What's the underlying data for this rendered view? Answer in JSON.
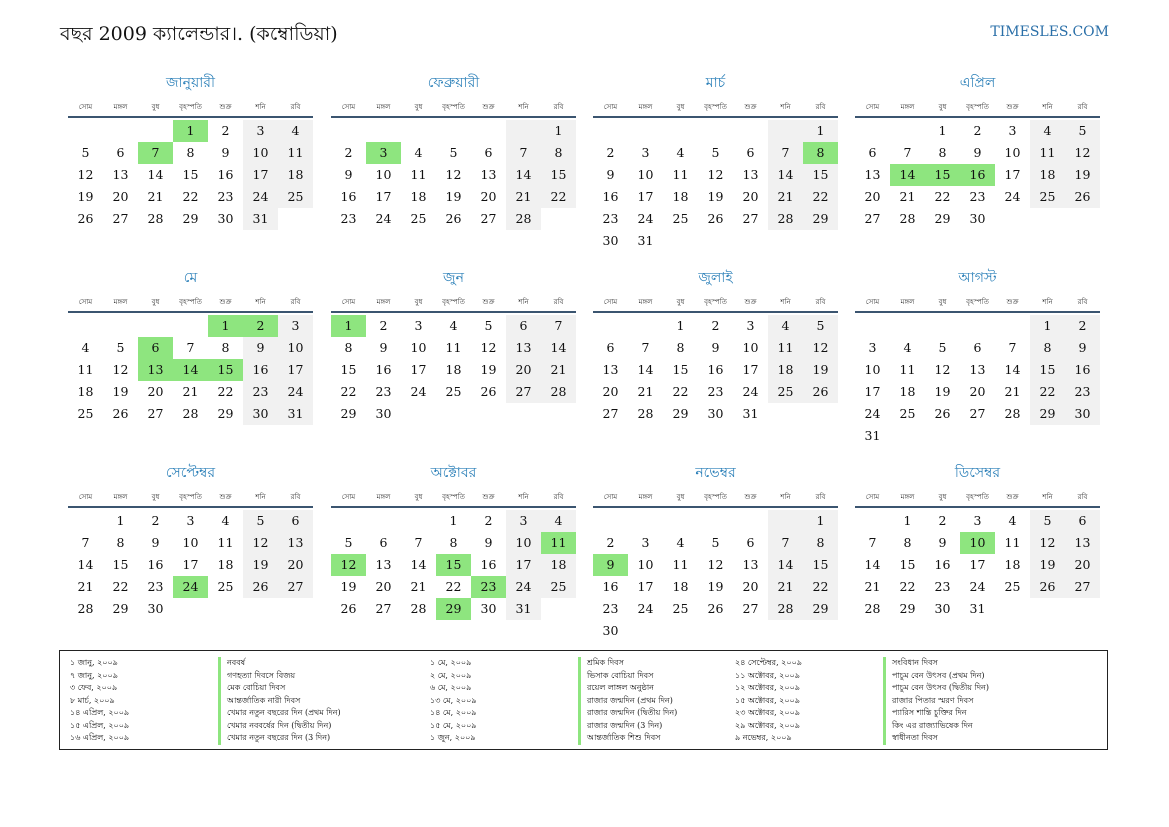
{
  "header": {
    "title": "বছর 2009 ক্যালেন্ডার।. (কম্বোডিয়া)",
    "site": "TIMESLES.COM"
  },
  "weekdays": [
    "সোম",
    "মঙ্গল",
    "বুধ",
    "বৃহস্পতি",
    "শুক্র",
    "শনি",
    "রবি"
  ],
  "colors": {
    "accent": "#2a7fb8",
    "holiday": "#8ee57f",
    "weekend": "#f1f1f1"
  },
  "months": [
    {
      "name": "জানুয়ারী",
      "offset": 3,
      "days": 31,
      "holidays": [
        1,
        7
      ]
    },
    {
      "name": "ফেব্রুয়ারী",
      "offset": 6,
      "days": 28,
      "holidays": [
        3
      ]
    },
    {
      "name": "মার্চ",
      "offset": 6,
      "days": 31,
      "holidays": [
        8
      ]
    },
    {
      "name": "এপ্রিল",
      "offset": 2,
      "days": 30,
      "holidays": [
        14,
        15,
        16
      ]
    },
    {
      "name": "মে",
      "offset": 4,
      "days": 31,
      "holidays": [
        1,
        2,
        6,
        13,
        14,
        15
      ]
    },
    {
      "name": "জুন",
      "offset": 0,
      "days": 30,
      "holidays": [
        1
      ]
    },
    {
      "name": "জুলাই",
      "offset": 2,
      "days": 31,
      "holidays": []
    },
    {
      "name": "আগস্ট",
      "offset": 5,
      "days": 31,
      "holidays": []
    },
    {
      "name": "সেপ্টেম্বর",
      "offset": 1,
      "days": 30,
      "holidays": [
        24
      ]
    },
    {
      "name": "অক্টোবর",
      "offset": 3,
      "days": 31,
      "holidays": [
        11,
        12,
        15,
        23,
        29
      ]
    },
    {
      "name": "নভেম্বর",
      "offset": 6,
      "days": 30,
      "holidays": [
        9
      ]
    },
    {
      "name": "ডিসেম্বর",
      "offset": 1,
      "days": 31,
      "holidays": [
        10
      ]
    }
  ],
  "legend": [
    [
      {
        "date": "১ জানু, ২০০৯",
        "name": "নববর্ষ"
      },
      {
        "date": "৭ জানু, ২০০৯",
        "name": "গণহত্যা দিবসে বিজয়"
      },
      {
        "date": "৩ ফেব, ২০০৯",
        "name": "মেক বোচিয়া দিবস"
      },
      {
        "date": "৮ মার্চ, ২০০৯",
        "name": "আন্তর্জাতিক নারী দিবস"
      },
      {
        "date": "১৪ এপ্রিল, ২০০৯",
        "name": "খেমার নতুন বছরের দিন (প্রথম দিন)"
      },
      {
        "date": "১৫ এপ্রিল, ২০০৯",
        "name": "খেমার নববর্ষের দিন (দ্বিতীয় দিন)"
      },
      {
        "date": "১৬ এপ্রিল, ২০০৯",
        "name": "খেমার নতুন বছরের দিন (3 দিন)"
      }
    ],
    [
      {
        "date": "১ মে, ২০০৯",
        "name": "শ্রমিক দিবস"
      },
      {
        "date": "২ মে, ২০০৯",
        "name": "ভিসাক বোচিয়া দিবস"
      },
      {
        "date": "৬ মে, ২০০৯",
        "name": "রয়েল লাঙ্গল অনুষ্ঠান"
      },
      {
        "date": "১৩ মে, ২০০৯",
        "name": "রাজার জন্মদিন (প্রথম দিন)"
      },
      {
        "date": "১৪ মে, ২০০৯",
        "name": "রাজার জন্মদিন (দ্বিতীয় দিন)"
      },
      {
        "date": "১৫ মে, ২০০৯",
        "name": "রাজার জন্মদিন (3 দিন)"
      },
      {
        "date": "১ জুন, ২০০৯",
        "name": "আন্তর্জাতিক শিশু দিবস"
      }
    ],
    [
      {
        "date": "২৪ সেপ্টেম্বর, ২০০৯",
        "name": "সংবিধান দিবস"
      },
      {
        "date": "১১ অক্টোবর, ২০০৯",
        "name": "পাচুম বেন উৎসব (প্রথম দিন)"
      },
      {
        "date": "১২ অক্টোবর, ২০০৯",
        "name": "পাচুম বেন উৎসব (দ্বিতীয় দিন)"
      },
      {
        "date": "১৫ অক্টোবর, ২০০৯",
        "name": "রাজার পিতার স্মরণ দিবস"
      },
      {
        "date": "২৩ অক্টোবর, ২০০৯",
        "name": "প্যারিস শান্তি চুক্তির দিন"
      },
      {
        "date": "২৯ অক্টোবর, ২০০৯",
        "name": "কিং এর রাজ্যাভিষেক দিন"
      },
      {
        "date": "৯ নভেম্বর, ২০০৯",
        "name": "স্বাধীনতা দিবস"
      }
    ]
  ]
}
